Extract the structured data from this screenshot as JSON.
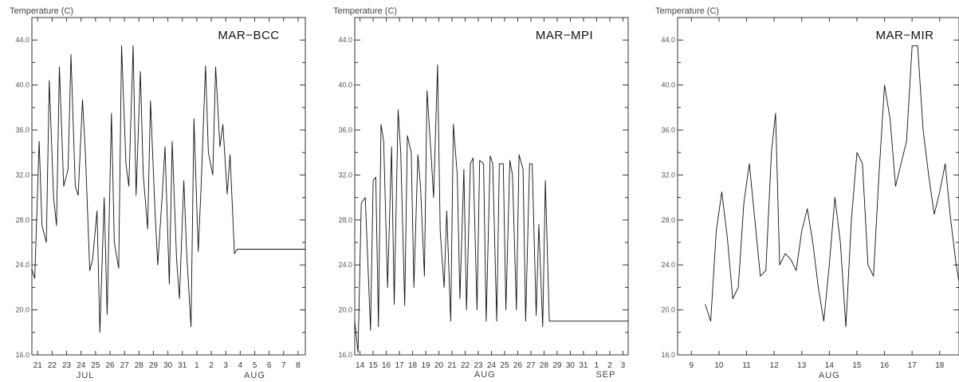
{
  "chart_data": [
    {
      "type": "line",
      "title": "MAR−BCC",
      "ylabel": "Temperature (C)",
      "xlabel": "",
      "ylim": [
        16.0,
        46.0
      ],
      "yticks": [
        "16.0",
        "20.0",
        "24.0",
        "28.0",
        "32.0",
        "36.0",
        "40.0",
        "44.0"
      ],
      "xlim": [
        20.6,
        39.5
      ],
      "xtick_labels": [
        "21",
        "22",
        "23",
        "24",
        "25",
        "26",
        "27",
        "28",
        "29",
        "30",
        "31",
        "1",
        "2",
        "3",
        "4",
        "5",
        "6",
        "7",
        "8"
      ],
      "month_labels": [
        {
          "text": "JUL",
          "at": 24.3
        },
        {
          "text": "AUG",
          "at": 36.0
        }
      ],
      "series": [
        {
          "x": [
            20.6,
            20.8,
            21.1,
            21.3,
            21.6,
            21.8,
            22.1,
            22.3,
            22.5,
            22.8,
            23.1,
            23.3,
            23.6,
            23.8,
            24.1,
            24.3,
            24.6,
            24.8,
            25.1,
            25.3,
            25.6,
            25.8,
            26.1,
            26.3,
            26.6,
            26.8,
            27.1,
            27.3,
            27.6,
            27.8,
            28.1,
            28.3,
            28.6,
            28.8,
            29.1,
            29.3,
            29.6,
            29.8,
            30.1,
            30.3,
            30.6,
            30.8,
            31.1,
            31.3,
            31.6,
            31.8,
            32.1,
            32.3,
            32.6,
            32.8,
            33.1,
            33.3,
            33.6,
            33.8,
            34.1,
            34.3,
            34.6,
            34.8,
            35.1,
            35.3,
            35.6,
            35.8,
            36.1,
            36.3,
            36.6,
            36.8,
            37.1,
            37.3,
            37.6,
            37.8,
            38.1,
            38.3,
            38.6,
            38.8,
            39.1,
            39.3,
            39.5
          ],
          "y": [
            23.6,
            22.8,
            35.0,
            27.5,
            26.0,
            40.4,
            30.0,
            27.5,
            41.6,
            31.0,
            32.5,
            42.7,
            31.0,
            30.2,
            38.7,
            34.0,
            23.5,
            24.5,
            28.8,
            18.0,
            30.0,
            19.6,
            37.5,
            26.0,
            23.7,
            43.5,
            33.0,
            31.0,
            43.5,
            30.2,
            41.2,
            32.0,
            27.2,
            38.6,
            29.0,
            24.0,
            30.0,
            34.5,
            22.3,
            35.0,
            24.5,
            21.0,
            31.5,
            25.0,
            18.5,
            37.0,
            25.2,
            31.0,
            41.7,
            34.0,
            32.0,
            41.6,
            34.5,
            36.5,
            30.3,
            33.8,
            25.0,
            25.4,
            25.4,
            25.4,
            25.4,
            25.4,
            25.4,
            25.4,
            25.4,
            25.4,
            25.4,
            25.4,
            25.4,
            25.4,
            25.4,
            25.4,
            25.4,
            25.4,
            25.4,
            25.4,
            25.4
          ]
        }
      ]
    },
    {
      "type": "line",
      "title": "MAR−MPI",
      "ylabel": "Temperature (C)",
      "xlabel": "",
      "ylim": [
        16.0,
        46.0
      ],
      "yticks": [
        "16.0",
        "20.0",
        "24.0",
        "28.0",
        "32.0",
        "36.0",
        "40.0",
        "44.0"
      ],
      "xlim": [
        13.6,
        34.4
      ],
      "xtick_labels": [
        "14",
        "15",
        "16",
        "17",
        "18",
        "19",
        "20",
        "21",
        "22",
        "23",
        "24",
        "25",
        "26",
        "27",
        "28",
        "29",
        "30",
        "31",
        "1",
        "2",
        "3"
      ],
      "month_labels": [
        {
          "text": "AUG",
          "at": 23.5
        },
        {
          "text": "SEP",
          "at": 32.7
        }
      ],
      "series": [
        {
          "x": [
            13.6,
            13.85,
            14.1,
            14.4,
            14.8,
            15.0,
            15.2,
            15.4,
            15.6,
            15.8,
            16.1,
            16.4,
            16.6,
            16.9,
            17.1,
            17.4,
            17.6,
            17.9,
            18.1,
            18.4,
            18.6,
            18.9,
            19.1,
            19.4,
            19.6,
            19.9,
            20.1,
            20.4,
            20.6,
            20.9,
            21.1,
            21.4,
            21.6,
            21.9,
            22.1,
            22.4,
            22.6,
            22.9,
            23.1,
            23.4,
            23.6,
            23.9,
            24.1,
            24.4,
            24.6,
            24.9,
            25.1,
            25.4,
            25.6,
            25.9,
            26.1,
            26.4,
            26.6,
            26.9,
            27.1,
            27.4,
            27.6,
            27.9,
            28.1,
            28.4,
            28.6,
            28.9,
            29.1,
            29.4,
            29.6,
            29.9,
            30.1,
            30.4,
            30.6,
            30.9,
            31.1,
            31.4,
            31.6,
            31.9,
            32.1,
            32.4,
            32.6,
            32.9,
            33.1,
            33.4,
            33.6,
            33.9,
            34.1,
            34.4
          ],
          "y": [
            19.0,
            16.2,
            29.5,
            30.0,
            18.2,
            31.5,
            31.8,
            18.5,
            36.5,
            35.0,
            22.0,
            34.5,
            20.5,
            37.8,
            34.0,
            20.4,
            35.5,
            34.0,
            22.0,
            33.8,
            31.0,
            23.0,
            39.5,
            34.0,
            30.0,
            41.8,
            27.0,
            22.0,
            28.8,
            19.0,
            36.5,
            32.0,
            21.0,
            32.5,
            20.0,
            33.0,
            33.5,
            20.0,
            33.3,
            33.0,
            19.0,
            33.7,
            33.0,
            19.0,
            33.0,
            33.0,
            20.0,
            33.3,
            32.0,
            20.0,
            33.8,
            32.5,
            19.0,
            33.0,
            33.0,
            19.5,
            27.6,
            18.5,
            31.5,
            19.0,
            19.0,
            19.0,
            19.0,
            19.0,
            19.0,
            19.0,
            19.0,
            19.0,
            19.0,
            19.0,
            19.0,
            19.0,
            19.0,
            19.0,
            19.0,
            19.0,
            19.0,
            19.0,
            19.0,
            19.0,
            19.0,
            19.0,
            19.0,
            19.0
          ]
        }
      ]
    },
    {
      "type": "line",
      "title": "MAR−MIR",
      "ylabel": "Temperature (C)",
      "xlabel": "",
      "ylim": [
        16.0,
        46.0
      ],
      "yticks": [
        "16.0",
        "20.0",
        "24.0",
        "28.0",
        "32.0",
        "36.0",
        "40.0",
        "44.0"
      ],
      "xlim": [
        8.5,
        18.7
      ],
      "xtick_labels": [
        "9",
        "10",
        "11",
        "12",
        "13",
        "14",
        "15",
        "16",
        "17",
        "18"
      ],
      "month_labels": [
        {
          "text": "AUG",
          "at": 14.0
        }
      ],
      "series": [
        {
          "x": [
            9.5,
            9.7,
            9.9,
            10.1,
            10.3,
            10.5,
            10.7,
            10.9,
            11.1,
            11.3,
            11.5,
            11.7,
            11.9,
            12.05,
            12.2,
            12.4,
            12.6,
            12.8,
            13.0,
            13.2,
            13.4,
            13.6,
            13.8,
            14.0,
            14.2,
            14.4,
            14.6,
            14.8,
            15.0,
            15.2,
            15.4,
            15.6,
            15.8,
            16.0,
            16.2,
            16.4,
            16.6,
            16.8,
            17.0,
            17.2,
            17.4,
            17.6,
            17.8,
            18.0,
            18.2,
            18.4,
            18.6,
            18.7
          ],
          "y": [
            20.5,
            19.0,
            27.0,
            30.5,
            26.5,
            21.0,
            22.0,
            29.5,
            33.0,
            28.0,
            23.0,
            23.5,
            34.0,
            37.5,
            24.0,
            25.0,
            24.5,
            23.5,
            27.0,
            29.0,
            26.0,
            22.0,
            19.0,
            24.0,
            30.0,
            26.0,
            18.5,
            28.0,
            34.0,
            33.0,
            24.0,
            23.0,
            32.0,
            40.0,
            37.0,
            31.0,
            33.0,
            35.0,
            43.5,
            43.5,
            36.0,
            32.0,
            28.5,
            30.5,
            33.0,
            28.0,
            24.0,
            22.5
          ]
        }
      ]
    }
  ]
}
